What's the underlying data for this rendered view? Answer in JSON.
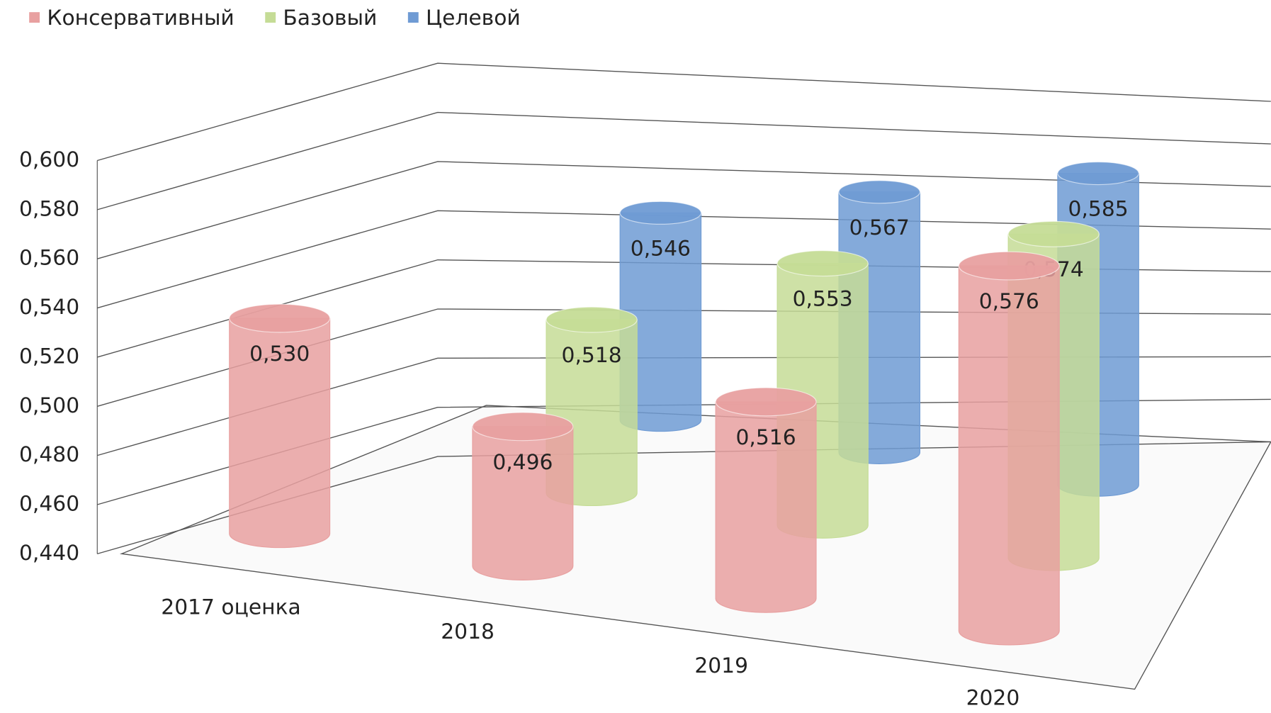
{
  "chart_data": {
    "type": "cylinder3d",
    "categories": [
      "2017 оценка",
      "2018",
      "2019",
      "2020"
    ],
    "series": [
      {
        "name": "Консервативный",
        "color": "#e8a0a0",
        "values": [
          0.53,
          0.496,
          0.516,
          0.576
        ],
        "value_labels": [
          "0,530",
          "0,496",
          "0,516",
          "0,576"
        ]
      },
      {
        "name": "Базовый",
        "color": "#c5dc96",
        "values": [
          null,
          0.518,
          0.553,
          0.574
        ],
        "value_labels": [
          null,
          "0,518",
          "0,553",
          "0,574"
        ]
      },
      {
        "name": "Целевой",
        "color": "#6f9bd4",
        "values": [
          null,
          0.546,
          0.567,
          0.585
        ],
        "value_labels": [
          null,
          "0,546",
          "0,567",
          "0,585"
        ]
      }
    ],
    "ylim": [
      0.44,
      0.6
    ],
    "yticks": [
      {
        "value": 0.44,
        "label": "0,440"
      },
      {
        "value": 0.46,
        "label": "0,460"
      },
      {
        "value": 0.48,
        "label": "0,480"
      },
      {
        "value": 0.5,
        "label": "0,500"
      },
      {
        "value": 0.52,
        "label": "0,520"
      },
      {
        "value": 0.54,
        "label": "0,540"
      },
      {
        "value": 0.56,
        "label": "0,560"
      },
      {
        "value": 0.58,
        "label": "0,580"
      },
      {
        "value": 0.6,
        "label": "0,600"
      }
    ],
    "grid": true,
    "legend": "top-left"
  }
}
